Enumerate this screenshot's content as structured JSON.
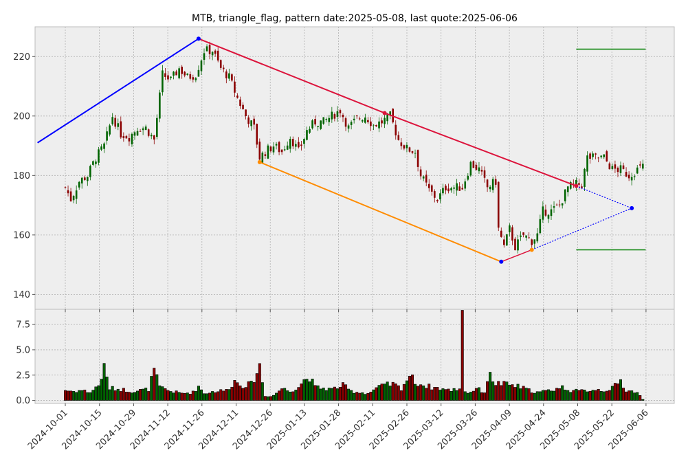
{
  "colors": {
    "up": "#006400",
    "down": "#8b0000",
    "upper_line": "#dc143c",
    "left_line": "#0000ff",
    "lower_line": "#ff8c00",
    "target": "#008000",
    "background": "#eeeeee"
  },
  "chart_data": {
    "type": "candlestick",
    "title": "MTB, triangle_flag, pattern date:2025-05-08, last quote:2025-06-06",
    "price_axis": {
      "ylim": [
        135,
        230
      ],
      "ticks": [
        140,
        160,
        180,
        200,
        220
      ]
    },
    "volume_axis": {
      "ylim": [
        -0.3,
        9.0
      ],
      "ticks": [
        "0.0",
        "2.5",
        "5.0",
        "7.5"
      ],
      "tick_values": [
        0,
        2.5,
        5.0,
        7.5
      ]
    },
    "x_ticks": [
      "2024-10-01",
      "2024-10-15",
      "2024-10-29",
      "2024-11-12",
      "2024-11-26",
      "2024-12-11",
      "2024-12-26",
      "2025-01-13",
      "2025-01-28",
      "2025-02-11",
      "2025-02-26",
      "2025-03-12",
      "2025-03-26",
      "2025-04-09",
      "2025-04-24",
      "2025-05-08",
      "2025-05-22",
      "2025-06-06"
    ],
    "close_anchors": [
      [
        0,
        176
      ],
      [
        2,
        172
      ],
      [
        5,
        178
      ],
      [
        8,
        180
      ],
      [
        11,
        186
      ],
      [
        14,
        190
      ],
      [
        17,
        200
      ],
      [
        20,
        194
      ],
      [
        23,
        193
      ],
      [
        26,
        196
      ],
      [
        29,
        196
      ],
      [
        32,
        192
      ],
      [
        35,
        214
      ],
      [
        38,
        212
      ],
      [
        41,
        216
      ],
      [
        44,
        213
      ],
      [
        47,
        214
      ],
      [
        50,
        222
      ],
      [
        53,
        222
      ],
      [
        56,
        216
      ],
      [
        59,
        213
      ],
      [
        62,
        206
      ],
      [
        65,
        200
      ],
      [
        68,
        196
      ],
      [
        70,
        186
      ],
      [
        72,
        188
      ],
      [
        75,
        190
      ],
      [
        78,
        188
      ],
      [
        81,
        193
      ],
      [
        84,
        188
      ],
      [
        87,
        195
      ],
      [
        90,
        198
      ],
      [
        93,
        198
      ],
      [
        96,
        200
      ],
      [
        99,
        202
      ],
      [
        102,
        196
      ],
      [
        105,
        199
      ],
      [
        108,
        200
      ],
      [
        111,
        197
      ],
      [
        114,
        198
      ],
      [
        117,
        200
      ],
      [
        120,
        192
      ],
      [
        123,
        189
      ],
      [
        126,
        188
      ],
      [
        128,
        180
      ],
      [
        131,
        175
      ],
      [
        134,
        172
      ],
      [
        137,
        176
      ],
      [
        140,
        176
      ],
      [
        143,
        176
      ],
      [
        146,
        184
      ],
      [
        149,
        182
      ],
      [
        152,
        176
      ],
      [
        155,
        178
      ],
      [
        156,
        162
      ],
      [
        158,
        156
      ],
      [
        160,
        162
      ],
      [
        162,
        156
      ],
      [
        165,
        160
      ],
      [
        168,
        158
      ],
      [
        170,
        160
      ],
      [
        172,
        168
      ],
      [
        175,
        168
      ],
      [
        178,
        170
      ],
      [
        181,
        176
      ],
      [
        184,
        177
      ],
      [
        186,
        177
      ],
      [
        188,
        186
      ],
      [
        191,
        186
      ],
      [
        194,
        186
      ],
      [
        197,
        182
      ],
      [
        200,
        182
      ],
      [
        203,
        180
      ],
      [
        206,
        182
      ],
      [
        208,
        183
      ]
    ],
    "volume_anchors": [
      [
        0,
        1.0
      ],
      [
        3,
        0.9
      ],
      [
        6,
        1.0
      ],
      [
        9,
        0.8
      ],
      [
        12,
        1.5
      ],
      [
        14,
        3.2
      ],
      [
        16,
        1.2
      ],
      [
        20,
        1.1
      ],
      [
        24,
        0.9
      ],
      [
        27,
        1.0
      ],
      [
        30,
        1.1
      ],
      [
        32,
        3.0
      ],
      [
        34,
        1.3
      ],
      [
        38,
        0.9
      ],
      [
        42,
        0.7
      ],
      [
        46,
        0.8
      ],
      [
        48,
        1.4
      ],
      [
        50,
        0.7
      ],
      [
        54,
        0.9
      ],
      [
        58,
        1.0
      ],
      [
        61,
        1.9
      ],
      [
        64,
        1.5
      ],
      [
        67,
        1.6
      ],
      [
        70,
        3.4
      ],
      [
        72,
        0.4
      ],
      [
        75,
        0.5
      ],
      [
        78,
        1.2
      ],
      [
        81,
        0.9
      ],
      [
        84,
        1.4
      ],
      [
        86,
        2.0
      ],
      [
        88,
        2.3
      ],
      [
        90,
        1.3
      ],
      [
        93,
        1.2
      ],
      [
        96,
        1.1
      ],
      [
        100,
        1.5
      ],
      [
        103,
        0.9
      ],
      [
        106,
        0.8
      ],
      [
        109,
        0.7
      ],
      [
        112,
        1.2
      ],
      [
        115,
        1.5
      ],
      [
        118,
        1.6
      ],
      [
        121,
        1.2
      ],
      [
        124,
        2.5
      ],
      [
        126,
        1.8
      ],
      [
        129,
        1.5
      ],
      [
        132,
        1.3
      ],
      [
        135,
        1.2
      ],
      [
        138,
        1.0
      ],
      [
        143,
        1.2
      ],
      [
        145,
        0.7
      ],
      [
        148,
        1.2
      ],
      [
        151,
        0.8
      ],
      [
        152,
        2.1
      ],
      [
        153,
        2.4
      ],
      [
        155,
        1.7
      ],
      [
        158,
        1.6
      ],
      [
        161,
        1.5
      ],
      [
        164,
        1.3
      ],
      [
        167,
        1.0
      ],
      [
        170,
        0.8
      ],
      [
        173,
        0.9
      ],
      [
        176,
        1.1
      ],
      [
        179,
        1.3
      ],
      [
        182,
        1.0
      ],
      [
        185,
        0.9
      ],
      [
        188,
        1.0
      ],
      [
        191,
        1.1
      ],
      [
        194,
        1.0
      ],
      [
        197,
        1.2
      ],
      [
        200,
        1.9
      ],
      [
        202,
        1.0
      ],
      [
        206,
        0.8
      ],
      [
        208,
        0.1
      ]
    ],
    "volume_spike": {
      "index": 143,
      "value": 8.9
    },
    "pattern_lines": {
      "left_line": [
        [
          -10,
          191
        ],
        [
          48,
          226
        ]
      ],
      "upper_line": [
        [
          48,
          226
        ],
        [
          115,
          201
        ],
        [
          184,
          176.5
        ]
      ],
      "lower_line": [
        [
          70,
          184.5
        ],
        [
          157,
          151
        ]
      ],
      "projection": [
        [
          157,
          151
        ],
        [
          168,
          155
        ],
        [
          184,
          176.5
        ],
        [
          204,
          169
        ]
      ],
      "targets": [
        {
          "x": [
            184,
            209
          ],
          "y": 222.5
        },
        {
          "x": [
            184,
            209
          ],
          "y": 155
        }
      ]
    },
    "pivot_points": [
      {
        "x": 48,
        "y": 226,
        "color": "left_line"
      },
      {
        "x": 70,
        "y": 184.5,
        "color": "lower_line"
      },
      {
        "x": 115,
        "y": 201,
        "color": "upper_line"
      },
      {
        "x": 157,
        "y": 151,
        "color": "left_line"
      },
      {
        "x": 168,
        "y": 155,
        "color": "lower_line"
      },
      {
        "x": 184,
        "y": 176.5,
        "color": "upper_line"
      },
      {
        "x": 204,
        "y": 169,
        "color": "left_line"
      }
    ],
    "n_bars": 209,
    "grid": true,
    "legend": "none"
  }
}
